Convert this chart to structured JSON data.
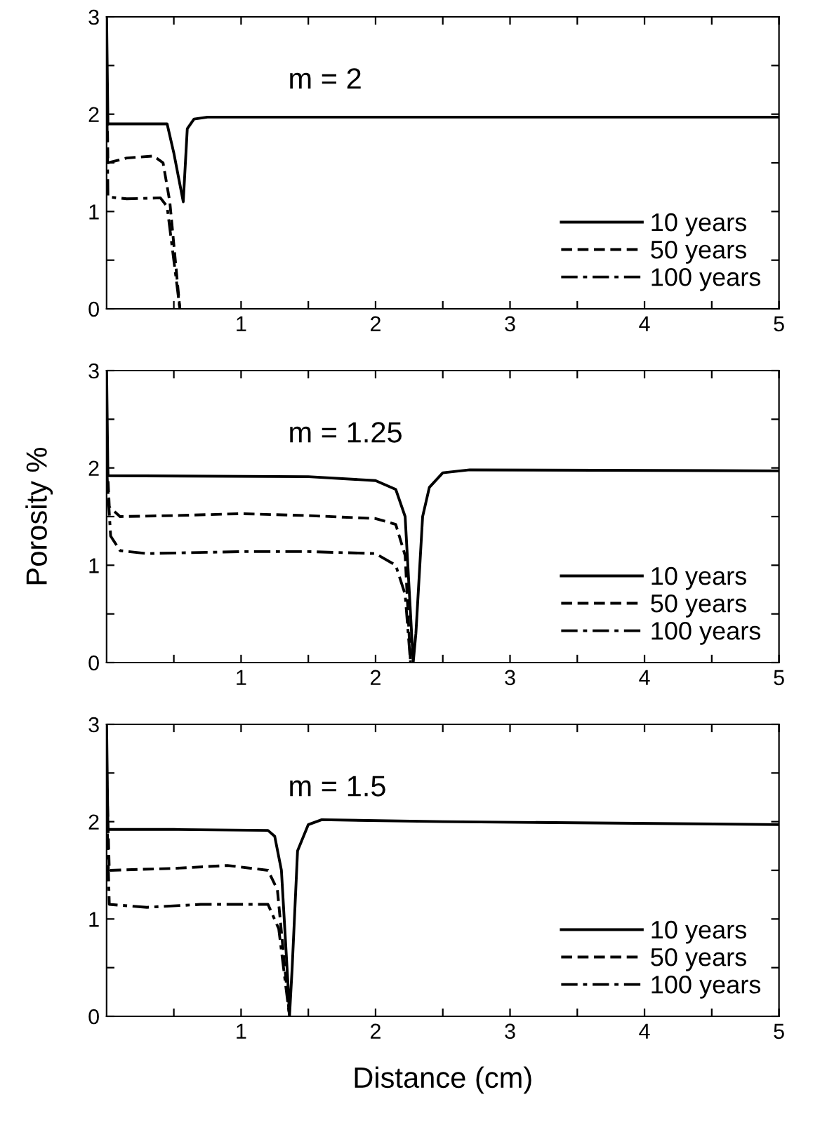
{
  "chart_data": [
    {
      "type": "line",
      "title": "m = 2",
      "xlim": [
        0,
        5
      ],
      "ylim": [
        0,
        3
      ],
      "xticks": [
        {
          "value": 0.5,
          "label": null
        },
        1,
        {
          "value": 1.5,
          "label": null
        },
        2,
        {
          "value": 2.5,
          "label": null
        },
        3,
        {
          "value": 3.5,
          "label": null
        },
        4,
        {
          "value": 4.5,
          "label": null
        },
        5
      ],
      "yticks": [
        0,
        {
          "value": 0.5,
          "label": null
        },
        1,
        {
          "value": 1.5,
          "label": null
        },
        2,
        {
          "value": 2.5,
          "label": null
        },
        3
      ],
      "legend": "lower right",
      "grid": false,
      "series": [
        {
          "name": "10 years",
          "color": "#000000",
          "line_style": "solid",
          "x": [
            0,
            0.01,
            0.45,
            0.5,
            0.57,
            0.6,
            0.65,
            0.75,
            5
          ],
          "values": [
            3,
            1.9,
            1.9,
            1.6,
            1.1,
            1.85,
            1.95,
            1.97,
            1.97
          ]
        },
        {
          "name": "50 years",
          "color": "#000000",
          "line_style": "dashed",
          "x": [
            0,
            0.01,
            0.15,
            0.35,
            0.42,
            0.47,
            0.545
          ],
          "values": [
            2.5,
            1.5,
            1.55,
            1.57,
            1.5,
            1.1,
            0
          ]
        },
        {
          "name": "100 years",
          "color": "#000000",
          "line_style": "dashdot",
          "x": [
            0,
            0.01,
            0.15,
            0.4,
            0.45,
            0.545
          ],
          "values": [
            2.3,
            1.15,
            1.13,
            1.14,
            1.05,
            0
          ]
        }
      ]
    },
    {
      "type": "line",
      "title": "m = 1.25",
      "ylabel": "Porosity %",
      "xlim": [
        0,
        5
      ],
      "ylim": [
        0,
        3
      ],
      "xticks": [
        {
          "value": 0.5,
          "label": null
        },
        1,
        {
          "value": 1.5,
          "label": null
        },
        2,
        {
          "value": 2.5,
          "label": null
        },
        3,
        {
          "value": 3.5,
          "label": null
        },
        4,
        {
          "value": 4.5,
          "label": null
        },
        5
      ],
      "yticks": [
        0,
        {
          "value": 0.5,
          "label": null
        },
        1,
        {
          "value": 1.5,
          "label": null
        },
        2,
        {
          "value": 2.5,
          "label": null
        },
        3
      ],
      "legend": "lower right",
      "grid": false,
      "series": [
        {
          "name": "10 years",
          "color": "#000000",
          "line_style": "solid",
          "x": [
            0,
            0.01,
            1.5,
            2.0,
            2.15,
            2.22,
            2.26,
            2.28,
            2.3,
            2.35,
            2.4,
            2.5,
            2.7,
            5
          ],
          "values": [
            3,
            1.92,
            1.91,
            1.87,
            1.78,
            1.5,
            0.5,
            0,
            0.3,
            1.5,
            1.8,
            1.95,
            1.98,
            1.97
          ]
        },
        {
          "name": "50 years",
          "color": "#000000",
          "line_style": "dashed",
          "x": [
            0,
            0.02,
            0.1,
            0.5,
            1.0,
            1.5,
            2.0,
            2.15,
            2.22,
            2.26
          ],
          "values": [
            2.2,
            1.6,
            1.5,
            1.51,
            1.53,
            1.51,
            1.48,
            1.42,
            1.1,
            0
          ]
        },
        {
          "name": "100 years",
          "color": "#000000",
          "line_style": "dashdot",
          "x": [
            0,
            0.03,
            0.1,
            0.3,
            1.0,
            1.5,
            2.0,
            2.15,
            2.22,
            2.26
          ],
          "values": [
            2.0,
            1.3,
            1.15,
            1.12,
            1.14,
            1.14,
            1.12,
            1.0,
            0.7,
            0
          ]
        }
      ]
    },
    {
      "type": "line",
      "title": "m = 1.5",
      "xlabel": "Distance (cm)",
      "xlim": [
        0,
        5
      ],
      "ylim": [
        0,
        3
      ],
      "xticks": [
        {
          "value": 0.5,
          "label": null
        },
        1,
        {
          "value": 1.5,
          "label": null
        },
        2,
        {
          "value": 2.5,
          "label": null
        },
        3,
        {
          "value": 3.5,
          "label": null
        },
        4,
        {
          "value": 4.5,
          "label": null
        },
        5
      ],
      "yticks": [
        0,
        {
          "value": 0.5,
          "label": null
        },
        1,
        {
          "value": 1.5,
          "label": null
        },
        2,
        {
          "value": 2.5,
          "label": null
        },
        3
      ],
      "legend": "lower right",
      "grid": false,
      "series": [
        {
          "name": "10 years",
          "color": "#000000",
          "line_style": "solid",
          "x": [
            0,
            0.01,
            0.5,
            1.2,
            1.25,
            1.3,
            1.35,
            1.36,
            1.38,
            1.42,
            1.5,
            1.6,
            2.5,
            5
          ],
          "values": [
            3,
            1.92,
            1.92,
            1.91,
            1.85,
            1.5,
            0.3,
            0,
            0.5,
            1.7,
            1.97,
            2.02,
            2.0,
            1.97
          ]
        },
        {
          "name": "50 years",
          "color": "#000000",
          "line_style": "dashed",
          "x": [
            0,
            0.02,
            0.5,
            0.9,
            1.2,
            1.27,
            1.36
          ],
          "values": [
            2.5,
            1.5,
            1.52,
            1.55,
            1.5,
            1.3,
            0
          ]
        },
        {
          "name": "100 years",
          "color": "#000000",
          "line_style": "dashdot",
          "x": [
            0,
            0.02,
            0.3,
            0.7,
            1.2,
            1.28,
            1.36
          ],
          "values": [
            2.2,
            1.15,
            1.12,
            1.15,
            1.15,
            0.9,
            0
          ]
        }
      ]
    }
  ]
}
